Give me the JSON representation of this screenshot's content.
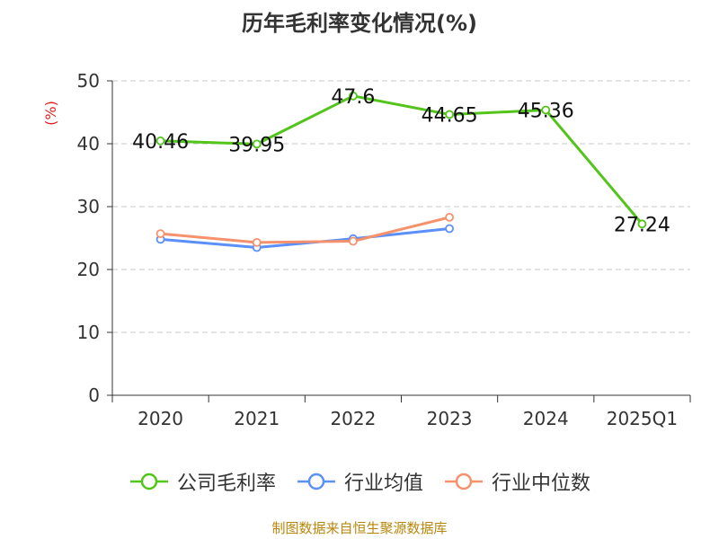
{
  "chart_data": {
    "type": "line",
    "title": "历年毛利率变化情况(%)",
    "ylabel": "(%)",
    "xlabel": "",
    "categories": [
      "2020",
      "2021",
      "2022",
      "2023",
      "2024",
      "2025Q1"
    ],
    "ylim": [
      0,
      50
    ],
    "yticks": [
      0,
      10,
      20,
      30,
      40,
      50
    ],
    "grid": true,
    "legend_position": "bottom",
    "series": [
      {
        "name": "公司毛利率",
        "color": "#52c41a",
        "values": [
          40.46,
          39.95,
          47.6,
          44.65,
          45.36,
          27.24
        ],
        "labels": [
          "40.46",
          "39.95",
          "47.6",
          "44.65",
          "45.36",
          "27.24"
        ]
      },
      {
        "name": "行业均值",
        "color": "#5b8ff9",
        "values": [
          24.8,
          23.5,
          24.9,
          26.5,
          null,
          null
        ]
      },
      {
        "name": "行业中位数",
        "color": "#f6916b",
        "values": [
          25.7,
          24.3,
          24.5,
          28.3,
          null,
          null
        ]
      }
    ]
  },
  "source_note": "制图数据来自恒生聚源数据库"
}
